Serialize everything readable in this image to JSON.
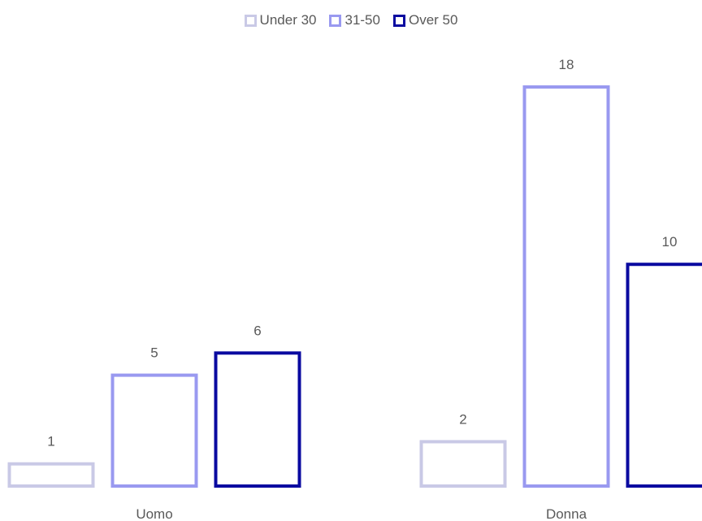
{
  "chart_data": {
    "type": "bar",
    "categories": [
      "Uomo",
      "Donna"
    ],
    "series": [
      {
        "name": "Under 30",
        "values": [
          1,
          2
        ],
        "color": "#C9C9E6"
      },
      {
        "name": "31-50",
        "values": [
          5,
          18
        ],
        "color": "#9999F0"
      },
      {
        "name": "Over 50",
        "values": [
          6,
          10
        ],
        "color": "#0A0AA0"
      }
    ],
    "title": "",
    "xlabel": "",
    "ylabel": "",
    "ylim": [
      0,
      18
    ],
    "grid": false,
    "legend_position": "top-center",
    "bar_style": "outline"
  }
}
